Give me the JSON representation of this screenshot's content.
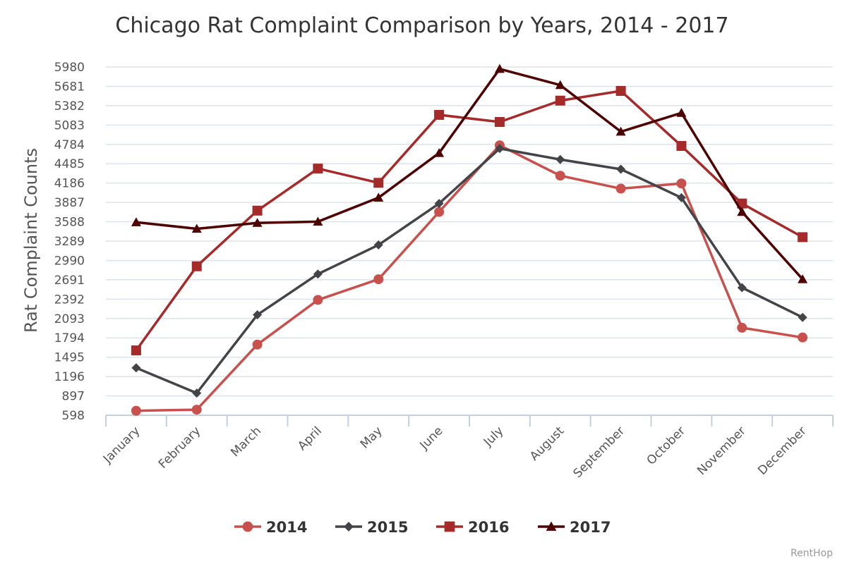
{
  "chart_data": {
    "type": "line",
    "title": "Chicago Rat Complaint Comparison by Years, 2014 - 2017",
    "ylabel": "Rat Complaint Counts",
    "xlabel": "",
    "categories": [
      "January",
      "February",
      "March",
      "April",
      "May",
      "June",
      "July",
      "August",
      "September",
      "October",
      "November",
      "December"
    ],
    "yticks": [
      598,
      897,
      1196,
      1495,
      1794,
      2093,
      2392,
      2691,
      2990,
      3289,
      3588,
      3887,
      4186,
      4485,
      4784,
      5083,
      5382,
      5681,
      5980
    ],
    "ylim": [
      598,
      5980
    ],
    "grid": true,
    "legend_position": "bottom",
    "series": [
      {
        "name": "2014",
        "color": "#c8504d",
        "marker": "circle",
        "values": [
          667,
          684,
          1690,
          2380,
          2700,
          3740,
          4770,
          4300,
          4100,
          4180,
          1950,
          1800
        ]
      },
      {
        "name": "2015",
        "color": "#434348",
        "marker": "diamond",
        "values": [
          1330,
          940,
          2150,
          2780,
          3230,
          3870,
          4720,
          4550,
          4400,
          3960,
          2570,
          2110
        ]
      },
      {
        "name": "2016",
        "color": "#a52a2a",
        "marker": "square",
        "values": [
          1600,
          2900,
          3760,
          4410,
          4190,
          5240,
          5130,
          5460,
          5610,
          4760,
          3870,
          3350
        ]
      },
      {
        "name": "2017",
        "color": "#4e0000",
        "marker": "triangle",
        "values": [
          3580,
          3480,
          3570,
          3590,
          3960,
          4650,
          5950,
          5700,
          4980,
          5270,
          3740,
          2700
        ]
      }
    ]
  },
  "credit": "RentHop"
}
